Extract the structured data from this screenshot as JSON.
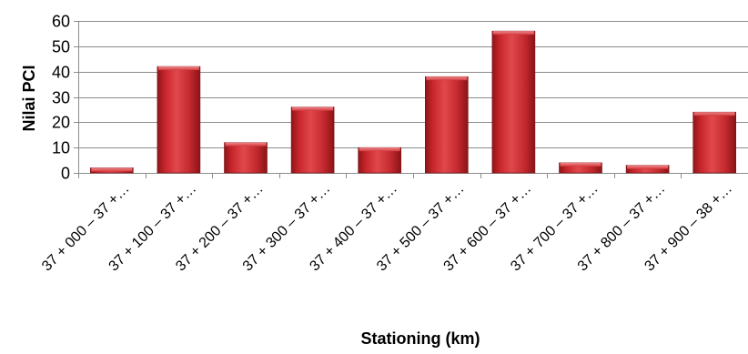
{
  "chart_data": {
    "type": "bar",
    "title": "",
    "xlabel": "Stationing (km)",
    "ylabel": "Nilai PCI",
    "ylim": [
      0,
      60
    ],
    "yticks": [
      0,
      10,
      20,
      30,
      40,
      50,
      60
    ],
    "grid": true,
    "legend": "none",
    "bar_color": "#c0272d",
    "categories": [
      "37 + 000 – 37 +…",
      "37 + 100 – 37 +…",
      "37 + 200 – 37 +…",
      "37 + 300 – 37 +…",
      "37 + 400 – 37 +…",
      "37 + 500 – 37 +…",
      "37 + 600 – 37 +…",
      "37 + 700 – 37 +…",
      "37 + 800 – 37 +…",
      "37 + 900 – 38 +…"
    ],
    "values": [
      2,
      42,
      12,
      26,
      10,
      38,
      56,
      4,
      3,
      24
    ]
  }
}
